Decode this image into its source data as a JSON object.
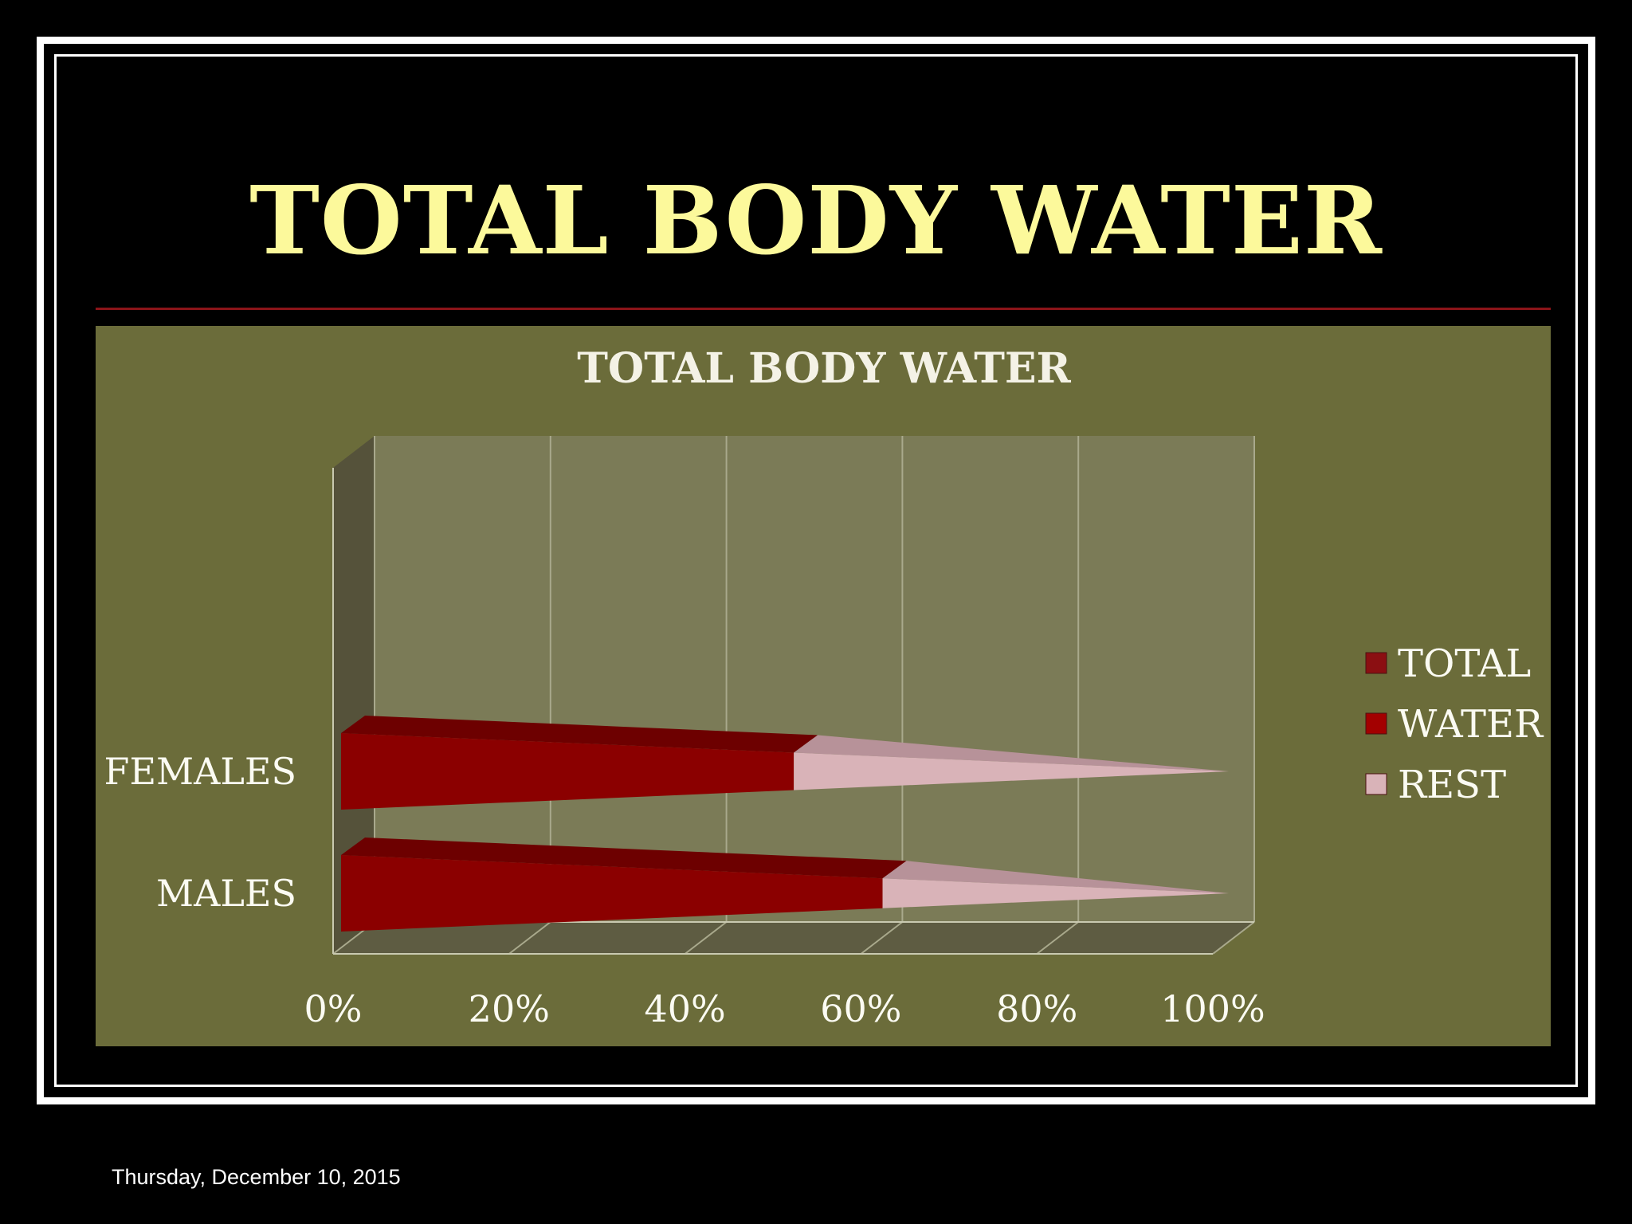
{
  "slide": {
    "title": "TOTAL BODY WATER",
    "footer_date": "Thursday, December 10, 2015"
  },
  "colors": {
    "background": "#000000",
    "title": "#fcf99b",
    "rule": "#8b1419",
    "panel": "#6b6c3a",
    "plot_wall": "#7b7b57",
    "water": "#8b0000",
    "rest": "#d9b3b8"
  },
  "chart_data": {
    "type": "bar",
    "orientation": "horizontal",
    "stacked": "percent",
    "style": "3d-cone",
    "title": "TOTAL BODY WATER",
    "categories": [
      "FEMALES",
      "MALES"
    ],
    "series": [
      {
        "name": "TOTAL",
        "values": [
          0,
          0
        ]
      },
      {
        "name": "WATER",
        "values": [
          51,
          61
        ]
      },
      {
        "name": "REST",
        "values": [
          49,
          39
        ]
      }
    ],
    "xlim": [
      0,
      100
    ],
    "x_ticks": [
      "0%",
      "20%",
      "40%",
      "60%",
      "80%",
      "100%"
    ],
    "grid": true,
    "legend": "right"
  }
}
